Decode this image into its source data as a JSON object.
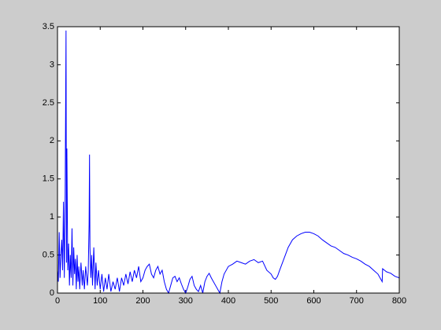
{
  "chart_data": {
    "type": "line",
    "x": [
      0,
      2,
      4,
      6,
      8,
      10,
      12,
      14,
      16,
      18,
      20,
      21,
      22,
      24,
      26,
      28,
      30,
      32,
      34,
      36,
      38,
      40,
      42,
      44,
      46,
      48,
      50,
      52,
      55,
      58,
      60,
      63,
      66,
      70,
      72,
      74,
      75,
      76,
      78,
      80,
      82,
      85,
      88,
      90,
      93,
      96,
      100,
      104,
      108,
      112,
      116,
      120,
      125,
      130,
      135,
      140,
      145,
      150,
      155,
      160,
      165,
      170,
      175,
      180,
      185,
      190,
      195,
      200,
      205,
      210,
      215,
      220,
      225,
      230,
      235,
      240,
      245,
      250,
      255,
      260,
      265,
      270,
      275,
      280,
      285,
      290,
      295,
      300,
      305,
      310,
      315,
      320,
      325,
      330,
      335,
      340,
      345,
      350,
      355,
      360,
      365,
      370,
      375,
      380,
      385,
      390,
      395,
      400,
      410,
      420,
      430,
      440,
      450,
      460,
      470,
      480,
      490,
      500,
      505,
      510,
      515,
      520,
      530,
      540,
      550,
      560,
      570,
      580,
      590,
      600,
      610,
      620,
      630,
      640,
      650,
      660,
      670,
      680,
      690,
      700,
      710,
      720,
      730,
      740,
      750,
      755,
      760,
      761,
      770,
      780,
      790,
      800
    ],
    "series": [
      {
        "color": "#0000ff",
        "values": [
          0.3,
          0.15,
          0.8,
          0.2,
          0.5,
          0.7,
          0.3,
          1.2,
          0.2,
          1.3,
          3.45,
          0.4,
          1.9,
          0.3,
          0.65,
          0.1,
          0.5,
          0.2,
          0.85,
          0.1,
          0.6,
          0.25,
          0.45,
          0.05,
          0.5,
          0.15,
          0.35,
          0.05,
          0.4,
          0.1,
          0.3,
          0.05,
          0.35,
          0.1,
          0.3,
          0.9,
          1.82,
          0.6,
          0.2,
          0.5,
          0.1,
          0.6,
          0.05,
          0.4,
          0.1,
          0.3,
          0.05,
          0.25,
          0.02,
          0.2,
          0.05,
          0.25,
          0.02,
          0.15,
          0.05,
          0.2,
          0.02,
          0.2,
          0.1,
          0.25,
          0.12,
          0.28,
          0.15,
          0.3,
          0.2,
          0.35,
          0.15,
          0.2,
          0.3,
          0.35,
          0.38,
          0.25,
          0.2,
          0.3,
          0.35,
          0.25,
          0.3,
          0.15,
          0.05,
          0.0,
          0.1,
          0.2,
          0.22,
          0.15,
          0.2,
          0.12,
          0.05,
          0.0,
          0.08,
          0.18,
          0.22,
          0.1,
          0.05,
          0.02,
          0.1,
          0.0,
          0.15,
          0.22,
          0.26,
          0.2,
          0.15,
          0.1,
          0.05,
          0.0,
          0.15,
          0.25,
          0.3,
          0.35,
          0.38,
          0.42,
          0.4,
          0.38,
          0.42,
          0.44,
          0.4,
          0.42,
          0.3,
          0.25,
          0.2,
          0.18,
          0.22,
          0.3,
          0.45,
          0.6,
          0.7,
          0.75,
          0.78,
          0.8,
          0.8,
          0.78,
          0.75,
          0.7,
          0.66,
          0.62,
          0.6,
          0.56,
          0.52,
          0.5,
          0.47,
          0.45,
          0.42,
          0.38,
          0.35,
          0.3,
          0.25,
          0.2,
          0.15,
          0.32,
          0.28,
          0.26,
          0.22,
          0.2
        ]
      }
    ],
    "xlim": [
      0,
      800
    ],
    "xticks": [
      0,
      100,
      200,
      300,
      400,
      500,
      600,
      700,
      800
    ],
    "ylim": [
      0,
      3.5
    ],
    "yticks": [
      0,
      0.5,
      1,
      1.5,
      2,
      2.5,
      3,
      3.5
    ]
  }
}
